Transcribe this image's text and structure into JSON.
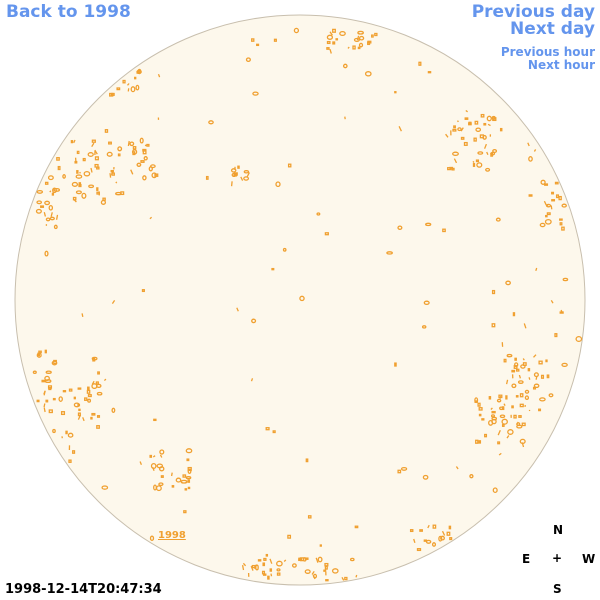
{
  "nav": {
    "back_label": "Back to 1998",
    "prev_day_label": "Previous day",
    "next_day_label": "Next day",
    "prev_hour_label": "Previous hour",
    "next_hour_label": "Next hour"
  },
  "year_label": "1998",
  "timestamp": "1998-12-14T20:47:34",
  "compass": {
    "n": "N",
    "e": "E",
    "center": "+",
    "w": "W",
    "s": "S"
  },
  "colors": {
    "disk_fill": "#fdf8ec",
    "disk_border": "#c8bfae",
    "feature": "#f0a030",
    "link": "#6495ED"
  }
}
